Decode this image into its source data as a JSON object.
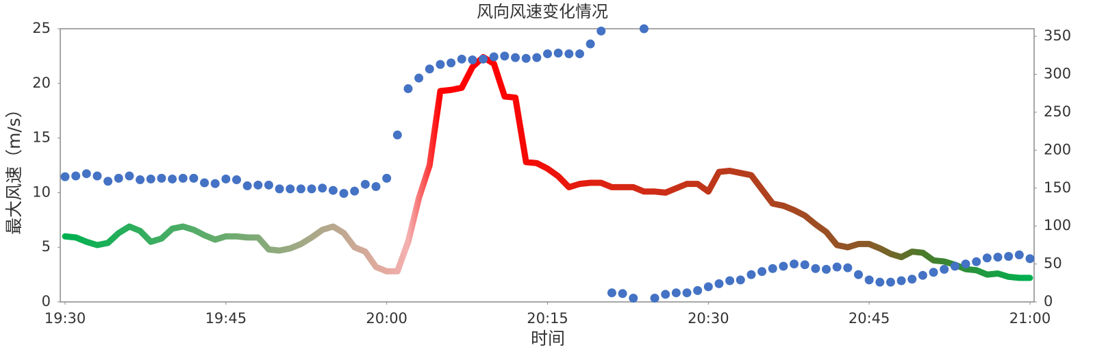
{
  "chart_data": {
    "type": "line",
    "title": "风向风速变化情况",
    "xlabel": "时间",
    "ylabel": "最大风速（m/s）",
    "x": [
      "19:30",
      "19:31",
      "19:32",
      "19:33",
      "19:34",
      "19:35",
      "19:36",
      "19:37",
      "19:38",
      "19:39",
      "19:40",
      "19:41",
      "19:42",
      "19:43",
      "19:44",
      "19:45",
      "19:46",
      "19:47",
      "19:48",
      "19:49",
      "19:50",
      "19:51",
      "19:52",
      "19:53",
      "19:54",
      "19:55",
      "19:56",
      "19:57",
      "19:58",
      "19:59",
      "20:00",
      "20:01",
      "20:02",
      "20:03",
      "20:04",
      "20:05",
      "20:06",
      "20:07",
      "20:08",
      "20:09",
      "20:10",
      "20:11",
      "20:12",
      "20:13",
      "20:14",
      "20:15",
      "20:16",
      "20:17",
      "20:18",
      "20:19",
      "20:20",
      "20:21",
      "20:22",
      "20:23",
      "20:24",
      "20:25",
      "20:26",
      "20:27",
      "20:28",
      "20:29",
      "20:30",
      "20:31",
      "20:32",
      "20:33",
      "20:34",
      "20:35",
      "20:36",
      "20:37",
      "20:38",
      "20:39",
      "20:40",
      "20:41",
      "20:42",
      "20:43",
      "20:44",
      "20:45",
      "20:46",
      "20:47",
      "20:48",
      "20:49",
      "20:50",
      "20:51",
      "20:52",
      "20:53",
      "20:54",
      "20:55",
      "20:56",
      "20:57",
      "20:58",
      "20:59",
      "21:00"
    ],
    "xlim": [
      "19:30",
      "21:00"
    ],
    "xticks": [
      "19:30",
      "19:45",
      "20:00",
      "20:15",
      "20:30",
      "20:45",
      "21:00"
    ],
    "ylim": [
      0,
      25
    ],
    "yticks": [
      0,
      5,
      10,
      15,
      20,
      25
    ],
    "y2lim": [
      0,
      360
    ],
    "y2ticks": [
      0,
      50,
      100,
      150,
      200,
      250,
      300,
      350
    ],
    "series": [
      {
        "name": "最大风速",
        "type": "line",
        "gradient": [
          {
            "x": "19:30",
            "color": "#00b050"
          },
          {
            "x": "19:45",
            "color": "#6aab6e"
          },
          {
            "x": "19:55",
            "color": "#b8a88e"
          },
          {
            "x": "20:00",
            "color": "#e6aaa0"
          },
          {
            "x": "20:02",
            "color": "#f4b0b0"
          },
          {
            "x": "20:05",
            "color": "#ff0000"
          },
          {
            "x": "20:10",
            "color": "#ff0000"
          },
          {
            "x": "20:20",
            "color": "#dd2212"
          },
          {
            "x": "20:35",
            "color": "#b0401e"
          },
          {
            "x": "20:45",
            "color": "#8a5a28"
          },
          {
            "x": "20:50",
            "color": "#4a7a2a"
          },
          {
            "x": "21:00",
            "color": "#00b050"
          }
        ],
        "values": [
          6.0,
          5.9,
          5.5,
          5.2,
          5.4,
          6.3,
          6.9,
          6.5,
          5.5,
          5.8,
          6.7,
          6.9,
          6.6,
          6.1,
          5.7,
          6.0,
          6.0,
          5.9,
          5.9,
          4.8,
          4.7,
          4.9,
          5.3,
          5.9,
          6.6,
          6.9,
          6.3,
          5.0,
          4.6,
          3.2,
          2.8,
          2.8,
          5.5,
          9.5,
          12.5,
          19.3,
          19.4,
          19.6,
          21.5,
          22.4,
          21.8,
          18.8,
          18.7,
          12.8,
          12.7,
          12.2,
          11.5,
          10.5,
          10.8,
          10.9,
          10.9,
          10.5,
          10.5,
          10.5,
          10.1,
          10.1,
          10.0,
          10.4,
          10.8,
          10.8,
          10.1,
          11.9,
          12.0,
          11.8,
          11.6,
          10.3,
          9.0,
          8.8,
          8.4,
          7.9,
          7.1,
          6.4,
          5.2,
          5.0,
          5.3,
          5.3,
          4.9,
          4.4,
          4.1,
          4.6,
          4.5,
          3.8,
          3.7,
          3.4,
          3.0,
          2.9,
          2.5,
          2.6,
          2.3,
          2.2,
          2.2
        ]
      },
      {
        "name": "风向",
        "type": "scatter",
        "axis": "y2",
        "color": "#4472c4",
        "values": [
          165,
          166,
          169,
          166,
          159,
          163,
          166,
          161,
          162,
          163,
          162,
          163,
          163,
          157,
          156,
          162,
          161,
          153,
          154,
          154,
          149,
          149,
          149,
          149,
          150,
          147,
          143,
          146,
          155,
          152,
          163,
          220,
          281,
          295,
          307,
          313,
          315,
          320,
          319,
          320,
          323,
          324,
          322,
          321,
          322,
          327,
          328,
          327,
          327,
          340,
          357,
          12,
          11,
          5,
          360,
          5,
          10,
          12,
          12,
          15,
          20,
          24,
          28,
          29,
          36,
          40,
          44,
          47,
          50,
          49,
          44,
          43,
          46,
          45,
          36,
          29,
          26,
          26,
          28,
          30,
          35,
          39,
          43,
          47,
          50,
          53,
          58,
          59,
          60,
          62,
          57
        ]
      }
    ]
  }
}
